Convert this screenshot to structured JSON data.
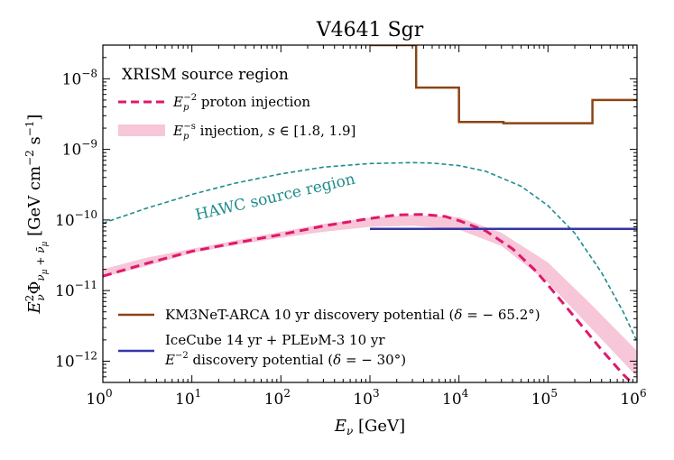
{
  "chart_data": {
    "type": "line",
    "title": "V4641 Sgr",
    "xlabel": "E",
    "xlabel_sub": "ν",
    "xlabel_unit": " [GeV]",
    "ylabel_main": "E",
    "ylabel_sub": "ν",
    "ylabel_sup": "2",
    "ylabel_phi": "Φ",
    "ylabel_phi_sub": "ν",
    "ylabel_phi_sub2": "μ",
    "ylabel_plus": " + ",
    "ylabel_nubar": "ν̄",
    "ylabel_unit": "  [GeV cm",
    "ylabel_unit_sup1": "−2",
    "ylabel_unit_s": " s",
    "ylabel_unit_sup2": "−1",
    "ylabel_unit_close": "]",
    "xscale": "log",
    "yscale": "log",
    "xlim": [
      1,
      1000000
    ],
    "ylim": [
      5e-13,
      3e-08
    ],
    "x_ticks": [
      {
        "base": "10",
        "exp": "0",
        "value": 1
      },
      {
        "base": "10",
        "exp": "1",
        "value": 10
      },
      {
        "base": "10",
        "exp": "2",
        "value": 100
      },
      {
        "base": "10",
        "exp": "3",
        "value": 1000
      },
      {
        "base": "10",
        "exp": "4",
        "value": 10000
      },
      {
        "base": "10",
        "exp": "5",
        "value": 100000
      },
      {
        "base": "10",
        "exp": "6",
        "value": 1000000
      }
    ],
    "y_ticks": [
      {
        "base": "10",
        "exp": "−8",
        "value": 1e-08
      },
      {
        "base": "10",
        "exp": "−9",
        "value": 1e-09
      },
      {
        "base": "10",
        "exp": "−10",
        "value": 1e-10
      },
      {
        "base": "10",
        "exp": "−11",
        "value": 1e-11
      },
      {
        "base": "10",
        "exp": "−12",
        "value": 1e-12
      }
    ],
    "series": [
      {
        "name": "XRISM E^-2 proton injection",
        "style": "dashed-thick",
        "color": "#e0186c",
        "x": [
          1,
          3,
          10,
          30,
          100,
          300,
          1000,
          2000,
          4000,
          7000,
          10000,
          20000,
          40000,
          70000,
          100000,
          200000,
          400000,
          700000,
          1000000
        ],
        "y": [
          1.6e-11,
          2.4e-11,
          3.6e-11,
          4.7e-11,
          6.2e-11,
          8.2e-11,
          1.05e-10,
          1.18e-10,
          1.2e-10,
          1.12e-10,
          9.8e-11,
          7e-11,
          3.9e-11,
          2e-11,
          1.2e-11,
          4.2e-12,
          1.45e-12,
          6.5e-13,
          4.2e-13
        ]
      },
      {
        "name": "HAWC source region",
        "style": "dashed-thin",
        "color": "#1f8c8c",
        "x": [
          1,
          3,
          10,
          30,
          100,
          300,
          1000,
          3000,
          5000,
          10000,
          20000,
          50000,
          100000,
          200000,
          400000,
          700000,
          1000000
        ],
        "y": [
          9e-11,
          1.45e-10,
          2.3e-10,
          3.3e-10,
          4.5e-10,
          5.6e-10,
          6.3e-10,
          6.5e-10,
          6.4e-10,
          5.9e-10,
          4.9e-10,
          3e-10,
          1.6e-10,
          6.5e-11,
          1.8e-11,
          5e-12,
          1.9e-12
        ]
      },
      {
        "name": "KM3NeT-ARCA 10 yr discovery potential",
        "style": "step",
        "color": "#8b4513",
        "x": [
          1000,
          3300,
          3300,
          10000,
          10000,
          31600,
          31600,
          316000,
          316000,
          1000000
        ],
        "y": [
          3e-08,
          3e-08,
          7.5e-09,
          7.5e-09,
          2.45e-09,
          2.45e-09,
          2.35e-09,
          2.35e-09,
          5e-09,
          5e-09
        ]
      },
      {
        "name": "IceCube 14 yr + PLEνM-3 10 yr",
        "style": "solid",
        "color": "#3535a8",
        "x": [
          1000,
          1000000
        ],
        "y": [
          7.5e-11,
          7.5e-11
        ]
      }
    ],
    "band": {
      "name": "E_p^-s injection, s in [1.8, 1.9]",
      "color": "#f7c6d8",
      "x": [
        1,
        3,
        10,
        30,
        100,
        300,
        1000,
        3000,
        10000,
        30000,
        100000,
        300000,
        1000000
      ],
      "y_low": [
        1.55e-11,
        2.2e-11,
        3.4e-11,
        4.4e-11,
        5.6e-11,
        6.8e-11,
        8e-11,
        8.3e-11,
        7.3e-11,
        4.3e-11,
        1.3e-11,
        3e-12,
        6e-13
      ],
      "y_high": [
        2e-11,
        2.9e-11,
        3.9e-11,
        5.1e-11,
        6.8e-11,
        8.8e-11,
        1.08e-10,
        1.18e-10,
        1.1e-10,
        6.6e-11,
        2.5e-11,
        6.5e-12,
        1.4e-12
      ]
    },
    "annotations": {
      "hawc_label": "HAWC source region",
      "hawc_color": "#1f8c8c"
    },
    "legend_top": {
      "heading": "XRISM source region",
      "entry1_pre": "E",
      "entry1_sub": "p",
      "entry1_sup": "−2",
      "entry1_text": " proton injection",
      "entry2_pre": "E",
      "entry2_sub": "p",
      "entry2_sup": "−s",
      "entry2_text": " injection, ",
      "entry2_math": "s",
      "entry2_rest": " ∈ [1.8, 1.9]"
    },
    "legend_bottom": {
      "km3_text": "KM3NeT-ARCA 10 yr discovery potential (",
      "km3_delta": "δ",
      "km3_rest": " = − 65.2°)",
      "ic_line1": "IceCube 14 yr + PLEνM-3 10 yr",
      "ic_line2_pre": "E",
      "ic_line2_sup": "−2",
      "ic_line2_text": " discovery potential (",
      "ic_delta": "δ",
      "ic_rest": " = − 30°)"
    },
    "grid": false
  }
}
